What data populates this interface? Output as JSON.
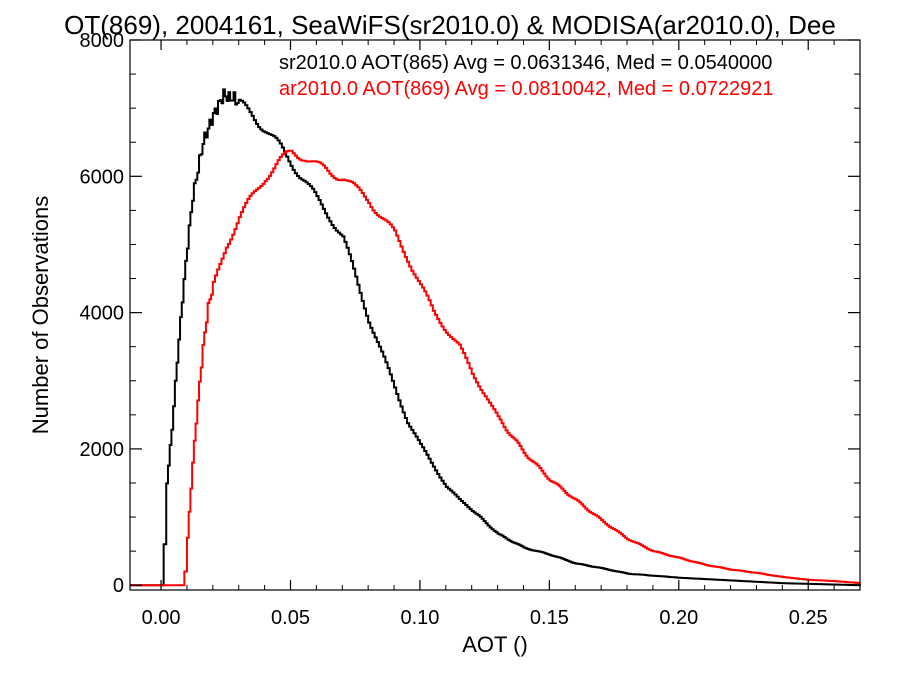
{
  "chart_data": {
    "type": "line",
    "title": "OT(869), 2004161, SeaWiFS(sr2010.0) & MODISA(ar2010.0), Dee",
    "xlabel": "AOT ()",
    "ylabel": "Number of Observations",
    "xlim": [
      -0.012,
      0.27
    ],
    "ylim": [
      -70,
      8000
    ],
    "x_ticks": [
      0.0,
      0.05,
      0.1,
      0.15,
      0.2,
      0.25
    ],
    "x_tick_labels": [
      "0.00",
      "0.05",
      "0.10",
      "0.15",
      "0.20",
      "0.25"
    ],
    "y_ticks": [
      0,
      2000,
      4000,
      6000,
      8000
    ],
    "y_tick_labels": [
      "0",
      "2000",
      "4000",
      "6000",
      "8000"
    ],
    "grid": false,
    "legend_position": "top-right",
    "annotations": [
      "sr2010.0 AOT(865) Avg = 0.0631346, Med = 0.0540000",
      "ar2010.0 AOT(869) Avg = 0.0810042, Med = 0.0722921"
    ],
    "series": [
      {
        "color": "#000000",
        "x": [
          -0.012,
          0.0,
          0.001,
          0.002,
          0.004,
          0.006,
          0.008,
          0.01,
          0.012,
          0.014,
          0.016,
          0.018,
          0.02,
          0.022,
          0.024,
          0.026,
          0.028,
          0.03,
          0.035,
          0.04,
          0.045,
          0.05,
          0.055,
          0.06,
          0.065,
          0.07,
          0.075,
          0.08,
          0.085,
          0.09,
          0.095,
          0.1,
          0.105,
          0.11,
          0.115,
          0.12,
          0.13,
          0.14,
          0.15,
          0.16,
          0.17,
          0.18,
          0.19,
          0.2,
          0.21,
          0.22,
          0.23,
          0.24,
          0.25,
          0.26,
          0.27
        ],
        "y": [
          0,
          0,
          600,
          1500,
          2300,
          3300,
          4200,
          5000,
          5700,
          6100,
          6500,
          6700,
          6900,
          7050,
          7200,
          7150,
          7150,
          7050,
          6900,
          6700,
          6450,
          6200,
          5950,
          5650,
          5400,
          5100,
          4500,
          3900,
          3400,
          2900,
          2400,
          2050,
          1750,
          1450,
          1250,
          1100,
          750,
          550,
          450,
          320,
          250,
          170,
          140,
          110,
          90,
          70,
          50,
          30,
          20,
          10,
          0
        ]
      },
      {
        "color": "#ff0000",
        "x": [
          -0.012,
          0.008,
          0.009,
          0.01,
          0.012,
          0.014,
          0.016,
          0.018,
          0.02,
          0.025,
          0.03,
          0.035,
          0.04,
          0.045,
          0.05,
          0.055,
          0.06,
          0.065,
          0.07,
          0.075,
          0.08,
          0.085,
          0.09,
          0.095,
          0.1,
          0.105,
          0.11,
          0.115,
          0.12,
          0.125,
          0.13,
          0.14,
          0.15,
          0.16,
          0.17,
          0.18,
          0.19,
          0.2,
          0.21,
          0.22,
          0.23,
          0.24,
          0.25,
          0.26,
          0.27
        ],
        "y": [
          0,
          0,
          200,
          700,
          1800,
          2700,
          3500,
          4100,
          4400,
          5000,
          5400,
          5700,
          6000,
          6200,
          6350,
          6300,
          6150,
          6050,
          6000,
          5800,
          5650,
          5400,
          5150,
          4800,
          4400,
          4000,
          3750,
          3500,
          3100,
          2800,
          2450,
          1950,
          1550,
          1250,
          950,
          680,
          500,
          400,
          300,
          230,
          180,
          120,
          80,
          60,
          30
        ]
      }
    ]
  }
}
